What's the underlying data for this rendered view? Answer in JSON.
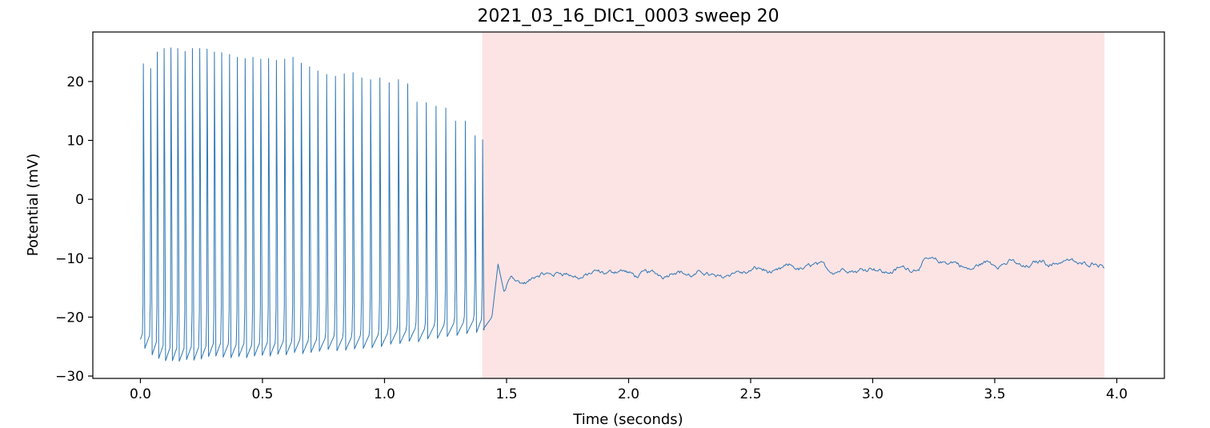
{
  "chart_data": {
    "type": "line",
    "title": "2021_03_16_DIC1_0003 sweep 20",
    "xlabel": "Time (seconds)",
    "ylabel": "Potential (mV)",
    "xlim": [
      -0.195,
      4.195
    ],
    "ylim": [
      -30.4,
      28.4
    ],
    "xticks": [
      0.0,
      0.5,
      1.0,
      1.5,
      2.0,
      2.5,
      3.0,
      3.5,
      4.0
    ],
    "xtick_labels": [
      "0.0",
      "0.5",
      "1.0",
      "1.5",
      "2.0",
      "2.5",
      "3.0",
      "3.5",
      "4.0"
    ],
    "yticks": [
      -30,
      -20,
      -10,
      0,
      10,
      20
    ],
    "ytick_labels": [
      "−30",
      "−20",
      "−10",
      "0",
      "10",
      "20"
    ],
    "grid": false,
    "shaded_region": {
      "x_start": 1.4,
      "x_end": 3.95,
      "color": "#fde4e4"
    },
    "series": [
      {
        "color": "#2f77b4",
        "spike_times": [
          0.012,
          0.042,
          0.069,
          0.097,
          0.125,
          0.153,
          0.183,
          0.213,
          0.243,
          0.273,
          0.303,
          0.333,
          0.365,
          0.397,
          0.429,
          0.461,
          0.493,
          0.525,
          0.557,
          0.591,
          0.625,
          0.659,
          0.693,
          0.727,
          0.763,
          0.799,
          0.835,
          0.871,
          0.907,
          0.943,
          0.981,
          1.019,
          1.057,
          1.095,
          1.133,
          1.171,
          1.211,
          1.251,
          1.291,
          1.331,
          1.371,
          1.402
        ],
        "spike_peaks": [
          23,
          22.2,
          25,
          25.6,
          25.7,
          25.6,
          25.1,
          25.6,
          25.6,
          25.5,
          25.0,
          24.9,
          24.6,
          24.1,
          23.9,
          24.1,
          23.8,
          23.9,
          23.6,
          23.8,
          24.1,
          23.1,
          22.5,
          21.8,
          21.2,
          20.9,
          21.3,
          21.5,
          20.6,
          20.3,
          20.6,
          19.8,
          20.3,
          19.6,
          16.5,
          16.4,
          15.8,
          15.5,
          13.3,
          13.3,
          10.8,
          10.1
        ],
        "spike_troughs": [
          -25.3,
          -26.4,
          -27.0,
          -27.4,
          -27.4,
          -27.5,
          -27.2,
          -27.3,
          -27.1,
          -26.7,
          -26.6,
          -26.8,
          -26.9,
          -26.7,
          -26.9,
          -26.6,
          -26.5,
          -26.6,
          -26.3,
          -26.4,
          -26.0,
          -26.2,
          -26.0,
          -25.8,
          -25.5,
          -25.7,
          -25.6,
          -25.4,
          -25.3,
          -25.2,
          -25.0,
          -24.6,
          -24.5,
          -24.1,
          -24.2,
          -23.7,
          -23.6,
          -23.3,
          -23.1,
          -22.8,
          -22.6,
          -22.2
        ],
        "start_value": -23.8,
        "t_end": 3.95,
        "plateau_profile": [
          [
            1.4,
            -22.3
          ],
          [
            1.44,
            -20.0
          ],
          [
            1.465,
            -11.0
          ],
          [
            1.49,
            -15.8
          ],
          [
            1.52,
            -13.0
          ],
          [
            1.6,
            -13.8
          ],
          [
            1.7,
            -12.8
          ],
          [
            1.8,
            -12.8
          ],
          [
            1.9,
            -13.0
          ],
          [
            2.0,
            -12.6
          ],
          [
            2.1,
            -12.8
          ],
          [
            2.2,
            -12.4
          ],
          [
            2.3,
            -12.5
          ],
          [
            2.4,
            -12.8
          ],
          [
            2.5,
            -11.9
          ],
          [
            2.6,
            -11.9
          ],
          [
            2.7,
            -12.1
          ],
          [
            2.8,
            -11.3
          ],
          [
            2.9,
            -11.8
          ],
          [
            3.0,
            -11.8
          ],
          [
            3.1,
            -11.6
          ],
          [
            3.2,
            -10.9
          ],
          [
            3.3,
            -10.6
          ],
          [
            3.4,
            -11.5
          ],
          [
            3.5,
            -11.1
          ],
          [
            3.6,
            -11.1
          ],
          [
            3.7,
            -10.6
          ],
          [
            3.8,
            -10.7
          ],
          [
            3.9,
            -10.4
          ],
          [
            3.95,
            -10.6
          ]
        ]
      }
    ]
  }
}
